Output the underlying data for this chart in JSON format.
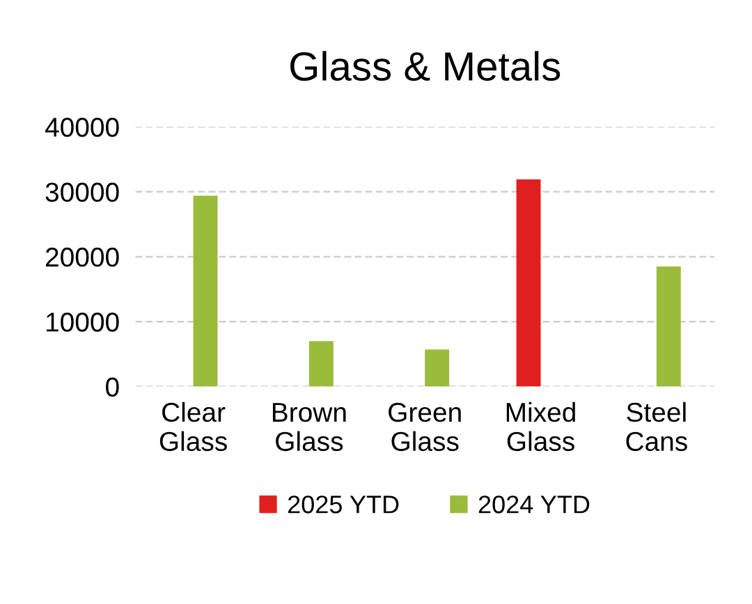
{
  "chart_data": {
    "type": "bar",
    "title": "Glass & Metals",
    "categories": [
      "Clear\nGlass",
      "Brown\nGlass",
      "Green\nGlass",
      "Mixed\nGlass",
      "Steel\nCans"
    ],
    "series": [
      {
        "name": "2025 YTD",
        "color": "#e0201e",
        "values": [
          null,
          null,
          null,
          31900,
          null
        ]
      },
      {
        "name": "2024 YTD",
        "color": "#9bbb3b",
        "values": [
          29400,
          7000,
          5700,
          null,
          18500
        ]
      }
    ],
    "ylim": [
      0,
      40000
    ],
    "yticks": [
      0,
      10000,
      20000,
      30000,
      40000
    ],
    "grid": "y",
    "legend": "bottom"
  }
}
